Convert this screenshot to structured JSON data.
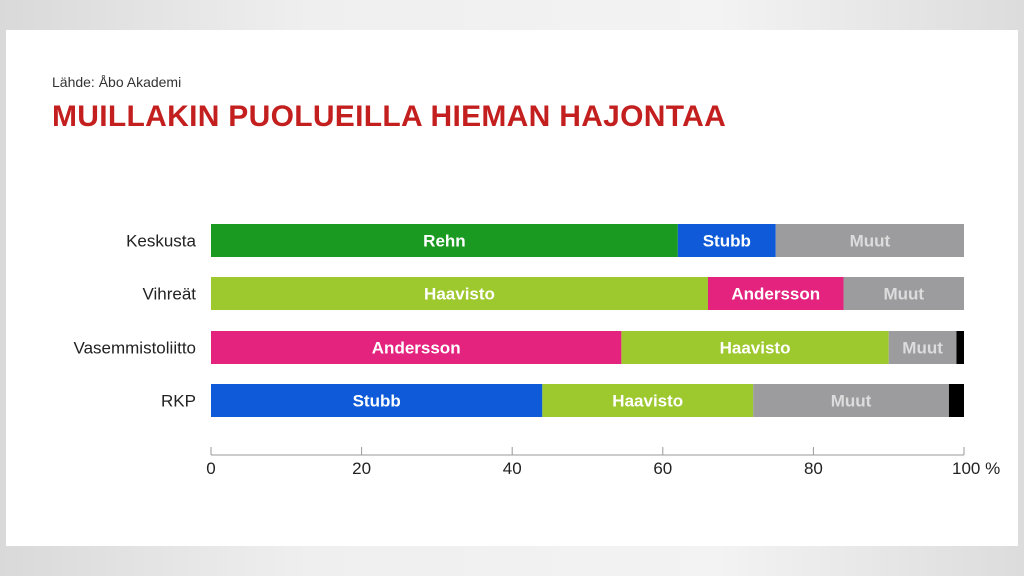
{
  "source": "Lähde: Åbo Akademi",
  "chart_data": {
    "type": "bar",
    "orientation": "horizontal",
    "stacked": true,
    "title": "MUILLAKIN PUOLUEILLA HIEMAN HAJONTAA",
    "categories": [
      "Keskusta",
      "Vihreät",
      "Vasemmistoliitto",
      "RKP"
    ],
    "xlim": [
      0,
      100
    ],
    "xticks": [
      "0",
      "20",
      "40",
      "60",
      "80",
      "100 %"
    ],
    "grid": false,
    "legend": "none",
    "rows": [
      {
        "category": "Keskusta",
        "segments": [
          {
            "label": "Rehn",
            "value": 62,
            "color": "#1b9a22"
          },
          {
            "label": "Stubb",
            "value": 13,
            "color": "#0e5ad8"
          },
          {
            "label": "Muut",
            "value": 25,
            "color": "#9c9c9e"
          }
        ]
      },
      {
        "category": "Vihreät",
        "segments": [
          {
            "label": "Haavisto",
            "value": 66,
            "color": "#9dc82e"
          },
          {
            "label": "Andersson",
            "value": 18,
            "color": "#e4237f"
          },
          {
            "label": "Muut",
            "value": 16,
            "color": "#9c9c9e"
          }
        ]
      },
      {
        "category": "Vasemmistoliitto",
        "segments": [
          {
            "label": "Andersson",
            "value": 54.5,
            "color": "#e4237f"
          },
          {
            "label": "Haavisto",
            "value": 35.5,
            "color": "#9dc82e"
          },
          {
            "label": "Muut",
            "value": 9,
            "color": "#9c9c9e"
          },
          {
            "label": "",
            "value": 1,
            "color": "#000000"
          }
        ]
      },
      {
        "category": "RKP",
        "segments": [
          {
            "label": "Stubb",
            "value": 44,
            "color": "#0e5ad8"
          },
          {
            "label": "Haavisto",
            "value": 28,
            "color": "#9dc82e"
          },
          {
            "label": "Muut",
            "value": 26,
            "color": "#9c9c9e"
          },
          {
            "label": "",
            "value": 2,
            "color": "#000000"
          }
        ]
      }
    ]
  }
}
